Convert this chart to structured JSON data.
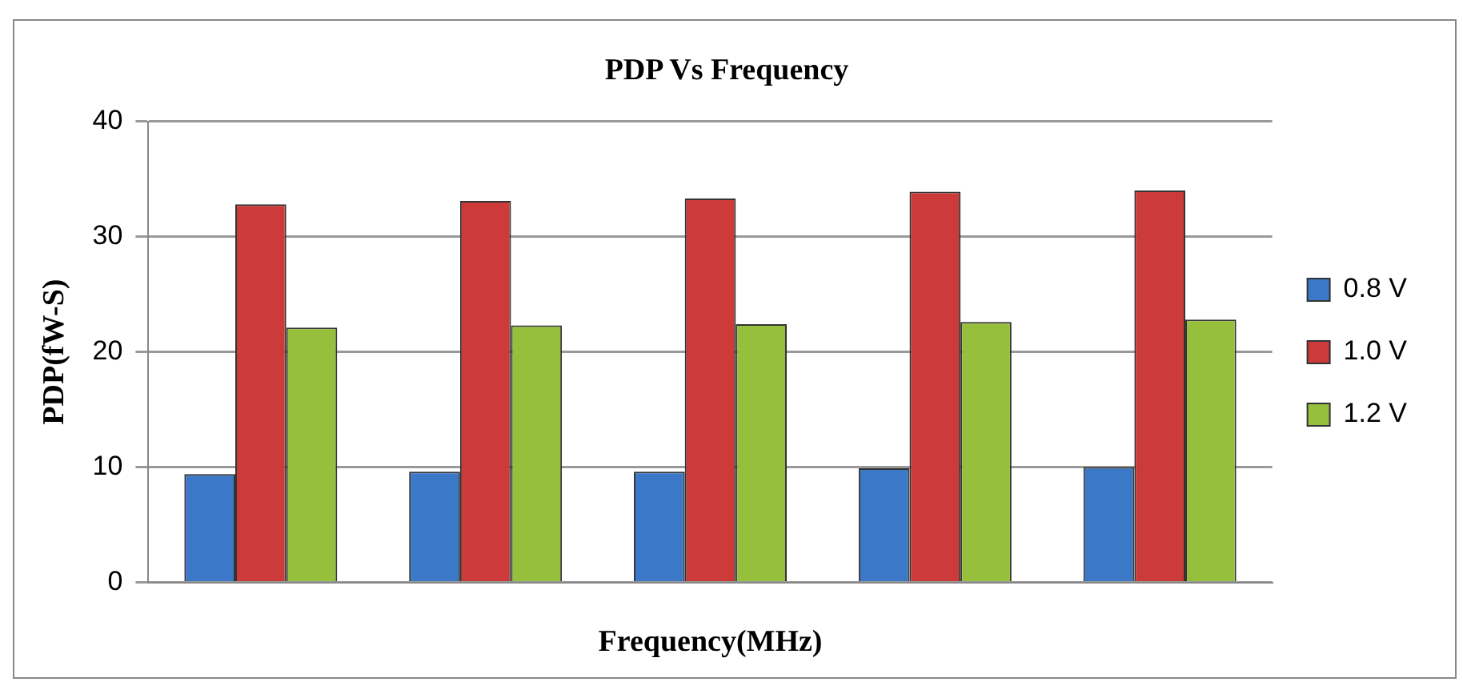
{
  "chart_data": {
    "type": "bar",
    "title": "PDP Vs Frequency",
    "xlabel": "Frequency(MHz)",
    "ylabel": "PDP(fW-S)",
    "categories": [
      null,
      null,
      null,
      null,
      null
    ],
    "series": [
      {
        "name": "0.8 V",
        "color": "#3b78c8",
        "values": [
          9.4,
          9.6,
          9.6,
          9.9,
          10.0
        ]
      },
      {
        "name": "1.0 V",
        "color": "#cc3a3a",
        "values": [
          32.8,
          33.1,
          33.3,
          33.9,
          34.0
        ]
      },
      {
        "name": "1.2 V",
        "color": "#96c03c",
        "values": [
          22.1,
          22.3,
          22.4,
          22.6,
          22.8
        ]
      }
    ],
    "ylim": [
      0,
      40
    ],
    "yticks": [
      0,
      10,
      20,
      30,
      40
    ],
    "grid": "y",
    "legend": "right"
  }
}
